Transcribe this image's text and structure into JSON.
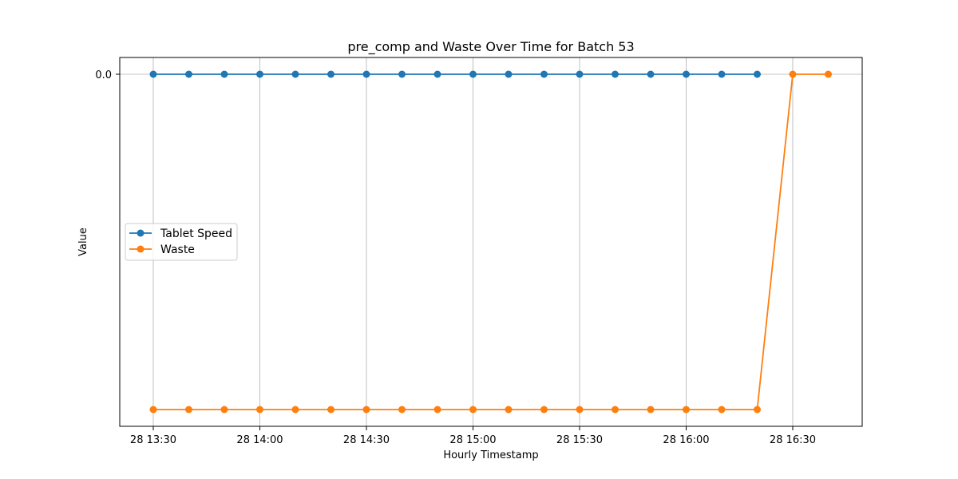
{
  "chart_data": {
    "type": "line",
    "title": "pre_comp and Waste Over Time for Batch 53",
    "xlabel": "Hourly Timestamp",
    "ylabel": "Value",
    "x": [
      "13:30",
      "13:40",
      "13:50",
      "14:00",
      "14:10",
      "14:20",
      "14:30",
      "14:40",
      "14:50",
      "15:00",
      "15:10",
      "15:20",
      "15:30",
      "15:40",
      "15:50",
      "16:00",
      "16:10",
      "16:20",
      "16:30",
      "16:40"
    ],
    "x_ticks": [
      {
        "value": "13:30",
        "label": "28 13:30"
      },
      {
        "value": "14:00",
        "label": "28 14:00"
      },
      {
        "value": "14:30",
        "label": "28 14:30"
      },
      {
        "value": "15:00",
        "label": "28 15:00"
      },
      {
        "value": "15:30",
        "label": "28 15:30"
      },
      {
        "value": "16:00",
        "label": "28 16:00"
      },
      {
        "value": "16:30",
        "label": "28 16:30"
      }
    ],
    "y_ticks": [
      {
        "value": 0,
        "label": "0.0"
      }
    ],
    "series": [
      {
        "name": "Tablet Speed",
        "color": "#1f77b4",
        "values": [
          0,
          0,
          0,
          0,
          0,
          0,
          0,
          0,
          0,
          0,
          0,
          0,
          0,
          0,
          0,
          0,
          0,
          0,
          null,
          null
        ]
      },
      {
        "name": "Waste",
        "color": "#ff7f0e",
        "values": [
          -1,
          -1,
          -1,
          -1,
          -1,
          -1,
          -1,
          -1,
          -1,
          -1,
          -1,
          -1,
          -1,
          -1,
          -1,
          -1,
          -1,
          -1,
          0,
          0
        ]
      }
    ],
    "ylim": [
      -1.05,
      0.05
    ],
    "grid": "vertical",
    "legend_position": "center-left"
  }
}
